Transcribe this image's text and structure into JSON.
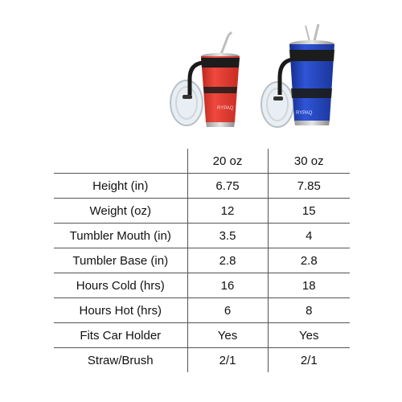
{
  "table": {
    "columns": [
      "",
      "20 oz",
      "30 oz"
    ],
    "rows": [
      {
        "label": "Height (in)",
        "v20": "6.75",
        "v30": "7.85"
      },
      {
        "label": "Weight (oz)",
        "v20": "12",
        "v30": "15"
      },
      {
        "label": "Tumbler Mouth (in)",
        "v20": "3.5",
        "v30": "4"
      },
      {
        "label": "Tumbler Base (in)",
        "v20": "2.8",
        "v30": "2.8"
      },
      {
        "label": "Hours Cold (hrs)",
        "v20": "16",
        "v30": "18"
      },
      {
        "label": "Hours Hot (hrs)",
        "v20": "6",
        "v30": "8"
      },
      {
        "label": "Fits Car Holder",
        "v20": "Yes",
        "v30": "Yes"
      },
      {
        "label": "Straw/Brush",
        "v20": "2/1",
        "v30": "2/1"
      }
    ]
  },
  "products": {
    "red_tumbler": {
      "color": "#e53a2f",
      "brand": "RYPAQ"
    },
    "blue_tumbler": {
      "color": "#1f3fb5",
      "brand": "RYPAQ"
    }
  }
}
